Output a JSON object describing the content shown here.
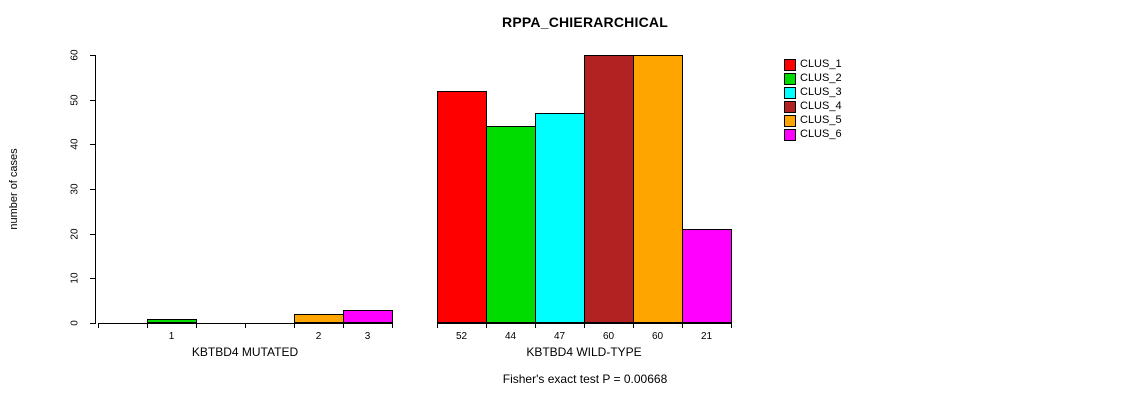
{
  "title": "RPPA_CHIERARCHICAL",
  "footer": "Fisher's exact test P = 0.00668",
  "chart_data": {
    "type": "bar",
    "title": "RPPA_CHIERARCHICAL",
    "xlabel": "",
    "ylabel": "number of cases",
    "ylim": [
      0,
      60
    ],
    "yticks": [
      0,
      10,
      20,
      30,
      40,
      50,
      60
    ],
    "grid": false,
    "legend_position": "right",
    "categories": [
      "KBTBD4 MUTATED",
      "KBTBD4 WILD-TYPE"
    ],
    "series": [
      {
        "name": "CLUS_1",
        "color": "#FF0000",
        "values": [
          0,
          52
        ]
      },
      {
        "name": "CLUS_2",
        "color": "#00DC00",
        "values": [
          1,
          44
        ]
      },
      {
        "name": "CLUS_3",
        "color": "#00FFFF",
        "values": [
          0,
          47
        ]
      },
      {
        "name": "CLUS_4",
        "color": "#B22222",
        "values": [
          0,
          60
        ]
      },
      {
        "name": "CLUS_5",
        "color": "#FFA500",
        "values": [
          2,
          60
        ]
      },
      {
        "name": "CLUS_6",
        "color": "#FF00FF",
        "values": [
          3,
          21
        ]
      }
    ],
    "annotation": "Fisher's exact test P = 0.00668"
  }
}
